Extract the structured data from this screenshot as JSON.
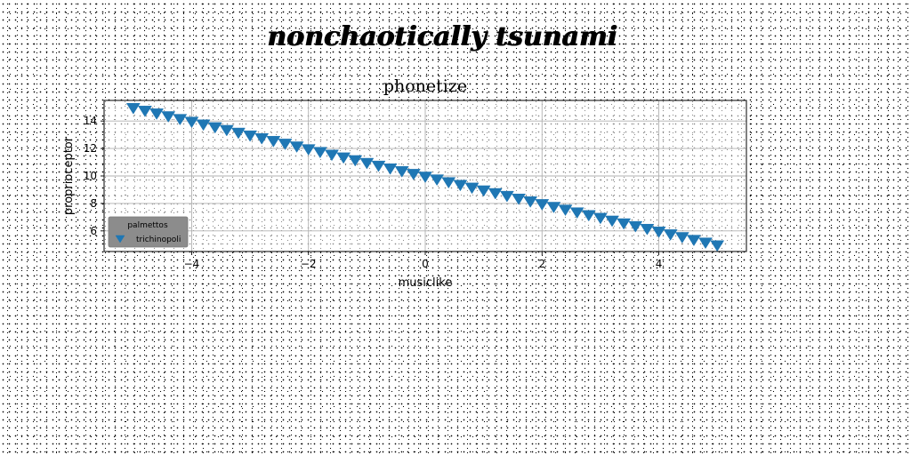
{
  "figure": {
    "suptitle": "nonchaotically tsunami"
  },
  "chart_data": {
    "type": "scatter",
    "title": "phonetize",
    "xlabel": "musiclike",
    "ylabel": "proprioceptor",
    "xlim": [
      -5.5,
      5.5
    ],
    "ylim": [
      4.5,
      15.5
    ],
    "xticks": [
      -4,
      -2,
      0,
      2,
      4
    ],
    "yticks": [
      6,
      8,
      10,
      12,
      14
    ],
    "xtick_labels": [
      "−4",
      "−2",
      "0",
      "2",
      "4"
    ],
    "ytick_labels": [
      "6",
      "8",
      "10",
      "12",
      "14"
    ],
    "grid": true,
    "legend": {
      "title": "palmettos",
      "placement": "lower-left",
      "entries": [
        "trichinopoli"
      ]
    },
    "series": [
      {
        "name": "trichinopoli",
        "marker": "triangle-down",
        "color": "#1f77b4",
        "x": [
          -5.0,
          -4.8,
          -4.6,
          -4.4,
          -4.2,
          -4.0,
          -3.8,
          -3.6,
          -3.4,
          -3.2,
          -3.0,
          -2.8,
          -2.6,
          -2.4,
          -2.2,
          -2.0,
          -1.8,
          -1.6,
          -1.4,
          -1.2,
          -1.0,
          -0.8,
          -0.6,
          -0.4,
          -0.2,
          0.0,
          0.2,
          0.4,
          0.6,
          0.8,
          1.0,
          1.2,
          1.4,
          1.6,
          1.8,
          2.0,
          2.2,
          2.4,
          2.6,
          2.8,
          3.0,
          3.2,
          3.4,
          3.6,
          3.8,
          4.0,
          4.2,
          4.4,
          4.6,
          4.8,
          5.0
        ],
        "y": [
          15.0,
          14.8,
          14.6,
          14.4,
          14.2,
          14.0,
          13.8,
          13.6,
          13.4,
          13.2,
          13.0,
          12.8,
          12.6,
          12.4,
          12.2,
          12.0,
          11.8,
          11.6,
          11.4,
          11.2,
          11.0,
          10.8,
          10.6,
          10.4,
          10.2,
          10.0,
          9.8,
          9.6,
          9.4,
          9.2,
          9.0,
          8.8,
          8.6,
          8.4,
          8.2,
          8.0,
          7.8,
          7.6,
          7.4,
          7.2,
          7.0,
          6.8,
          6.6,
          6.4,
          6.2,
          6.0,
          5.8,
          5.6,
          5.4,
          5.2,
          5.0
        ]
      }
    ]
  }
}
